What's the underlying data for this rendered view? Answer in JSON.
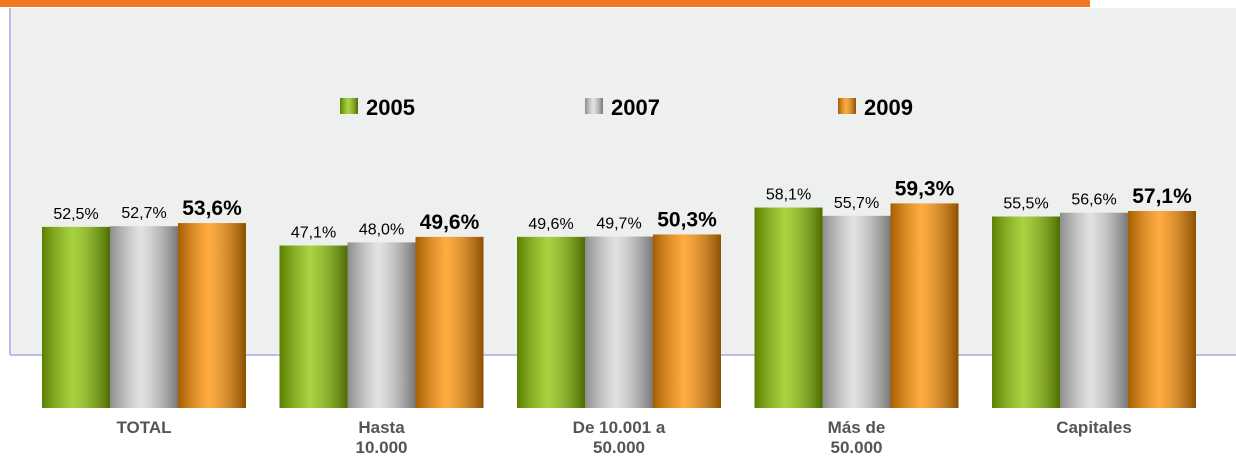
{
  "chart_data": {
    "type": "bar",
    "categories": [
      "TOTAL",
      "Hasta 10.000",
      "De 10.001 a 50.000",
      "Más de 50.000",
      "Capitales"
    ],
    "series": [
      {
        "name": "2005",
        "color": "#8cc400",
        "values": [
          52.5,
          47.1,
          49.6,
          58.1,
          55.5
        ],
        "value_labels": [
          "52,5%",
          "47,1%",
          "49,6%",
          "58,1%",
          "55,5%"
        ]
      },
      {
        "name": "2007",
        "color": "#d9d9d9",
        "values": [
          52.7,
          48.0,
          49.7,
          55.7,
          56.6
        ],
        "value_labels": [
          "52,7%",
          "48,0%",
          "49,7%",
          "55,7%",
          "56,6%"
        ]
      },
      {
        "name": "2009",
        "color": "#ff9000",
        "values": [
          53.6,
          49.6,
          50.3,
          59.3,
          57.1
        ],
        "value_labels": [
          "53,6%",
          "49,6%",
          "50,3%",
          "59,3%",
          "57,1%"
        ]
      }
    ],
    "legend": "top"
  }
}
